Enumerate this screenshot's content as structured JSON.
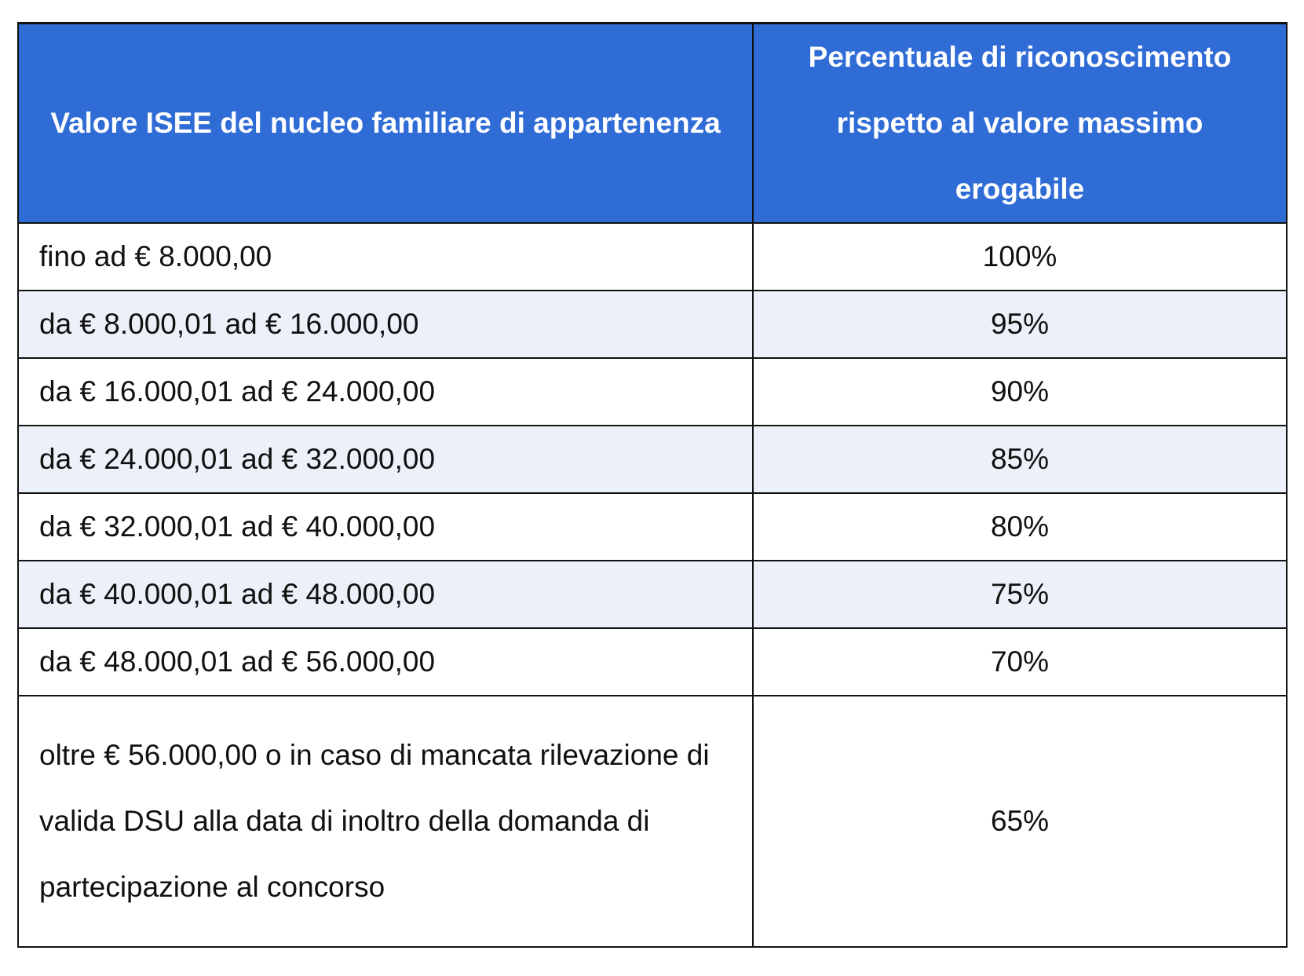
{
  "table": {
    "headers": [
      "Valore ISEE del nucleo familiare di appartenenza",
      "Percentuale di riconoscimento rispetto al valore massimo erogabile"
    ],
    "rows": [
      {
        "range": "fino ad € 8.000,00",
        "percent": "100%"
      },
      {
        "range": "da € 8.000,01 ad € 16.000,00",
        "percent": "95%"
      },
      {
        "range": "da € 16.000,01 ad € 24.000,00",
        "percent": "90%"
      },
      {
        "range": "da € 24.000,01 ad € 32.000,00",
        "percent": "85%"
      },
      {
        "range": "da € 32.000,01 ad € 40.000,00",
        "percent": "80%"
      },
      {
        "range": "da € 40.000,01 ad € 48.000,00",
        "percent": "75%"
      },
      {
        "range": "da € 48.000,01 ad € 56.000,00",
        "percent": "70%"
      },
      {
        "range": "oltre € 56.000,00 o in caso di mancata rilevazione di valida DSU alla data di inoltro della domanda di partecipazione al concorso",
        "percent": "65%"
      }
    ]
  },
  "colors": {
    "header_bg": "#2f6cd6",
    "stripe_bg": "#ebf0f9"
  }
}
